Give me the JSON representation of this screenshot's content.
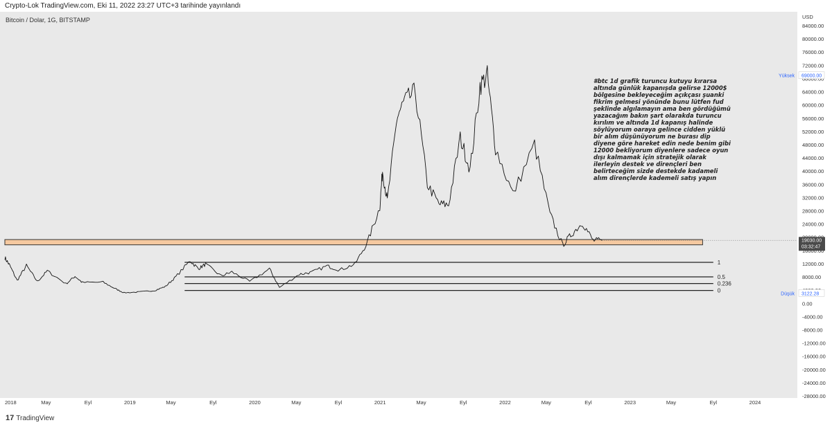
{
  "header": {
    "text": "Crypto-Lok TradingView.com, Eki 11, 2022 23:27 UTC+3 tarihinde yayınlandı"
  },
  "footer": {
    "brand": "TradingView",
    "logo_glyph": "17"
  },
  "annotation": {
    "text": "#btc 1d grafik turuncu kutuyu kırarsa altında günlük kapanışda gelirse 12000$ bölgesine bekleyeceğim açıkçası şuanki fikrim gelmesi yönünde bunu lütfen fud şeklinde algılamayın ama ben gördüğümü yazacağım bakın şart olarakda turuncu kırılım ve altında 1d kapanış halinde söylüyorum oaraya gelince cidden yüklü bir alım düşünüyorum ne burası dip diyene göre hareket edin nede benim gibi 12000 bekliyorum diyenlere sadece oyun dışı kalmamak için stratejik olarak ilerleyin destek ve dirençleri ben belirteceğim sizde destekde kadameli alım dirençlerde kademeli satış yapın"
  },
  "chart_data": {
    "type": "line",
    "title": "Bitcoin / Dolar, 1G, BITSTAMP",
    "currency_label": "USD",
    "y_range": [
      -28000,
      86000
    ],
    "y_ticks": [
      "84000.00",
      "80000.00",
      "76000.00",
      "72000.00",
      "68000.00",
      "64000.00",
      "60000.00",
      "56000.00",
      "52000.00",
      "48000.00",
      "44000.00",
      "40000.00",
      "36000.00",
      "32000.00",
      "28000.00",
      "24000.00",
      "20000.00",
      "16000.00",
      "12000.00",
      "8000.00",
      "4000.00",
      "0.00",
      "-4000.00",
      "-8000.00",
      "-12000.00",
      "-16000.00",
      "-20000.00",
      "-24000.00",
      "-28000.00"
    ],
    "x_ticks": [
      {
        "label": "2018",
        "date": "2018-01-01"
      },
      {
        "label": "May",
        "date": "2018-05-01"
      },
      {
        "label": "Eyl",
        "date": "2018-09-01"
      },
      {
        "label": "2019",
        "date": "2019-01-01"
      },
      {
        "label": "May",
        "date": "2019-05-01"
      },
      {
        "label": "Eyl",
        "date": "2019-09-01"
      },
      {
        "label": "2020",
        "date": "2020-01-01"
      },
      {
        "label": "May",
        "date": "2020-05-01"
      },
      {
        "label": "Eyl",
        "date": "2020-09-01"
      },
      {
        "label": "2021",
        "date": "2021-01-01"
      },
      {
        "label": "May",
        "date": "2021-05-01"
      },
      {
        "label": "Eyl",
        "date": "2021-09-01"
      },
      {
        "label": "2022",
        "date": "2022-01-01"
      },
      {
        "label": "May",
        "date": "2022-05-01"
      },
      {
        "label": "Eyl",
        "date": "2022-09-01"
      },
      {
        "label": "2023",
        "date": "2023-01-01"
      },
      {
        "label": "May",
        "date": "2023-05-01"
      },
      {
        "label": "Eyl",
        "date": "2023-09-01"
      },
      {
        "label": "2024",
        "date": "2024-01-01"
      }
    ],
    "series": [
      {
        "values": [
          {
            "date": "2018-01-01",
            "price": 13800
          },
          {
            "date": "2018-01-15",
            "price": 11500
          },
          {
            "date": "2018-02-06",
            "price": 6900
          },
          {
            "date": "2018-03-05",
            "price": 11400
          },
          {
            "date": "2018-04-06",
            "price": 6600
          },
          {
            "date": "2018-05-05",
            "price": 9800
          },
          {
            "date": "2018-06-29",
            "price": 5900
          },
          {
            "date": "2018-07-25",
            "price": 8200
          },
          {
            "date": "2018-08-15",
            "price": 6300
          },
          {
            "date": "2018-10-15",
            "price": 6400
          },
          {
            "date": "2018-11-20",
            "price": 4400
          },
          {
            "date": "2018-12-15",
            "price": 3200
          },
          {
            "date": "2019-01-30",
            "price": 3450
          },
          {
            "date": "2019-03-15",
            "price": 3900
          },
          {
            "date": "2019-04-15",
            "price": 5100
          },
          {
            "date": "2019-05-15",
            "price": 8000
          },
          {
            "date": "2019-06-26",
            "price": 12900
          },
          {
            "date": "2019-07-20",
            "price": 10500
          },
          {
            "date": "2019-08-10",
            "price": 11800
          },
          {
            "date": "2019-09-25",
            "price": 8300
          },
          {
            "date": "2019-10-26",
            "price": 9500
          },
          {
            "date": "2019-12-17",
            "price": 6600
          },
          {
            "date": "2020-02-13",
            "price": 10400
          },
          {
            "date": "2020-03-13",
            "price": 4800
          },
          {
            "date": "2020-05-10",
            "price": 8800
          },
          {
            "date": "2020-06-15",
            "price": 9400
          },
          {
            "date": "2020-07-30",
            "price": 11300
          },
          {
            "date": "2020-09-05",
            "price": 10100
          },
          {
            "date": "2020-10-20",
            "price": 11900
          },
          {
            "date": "2020-11-25",
            "price": 18500
          },
          {
            "date": "2020-12-31",
            "price": 29000
          },
          {
            "date": "2021-01-08",
            "price": 40000
          },
          {
            "date": "2021-01-22",
            "price": 31000
          },
          {
            "date": "2021-02-21",
            "price": 57000
          },
          {
            "date": "2021-03-13",
            "price": 61000
          },
          {
            "date": "2021-04-14",
            "price": 64000
          },
          {
            "date": "2021-05-19",
            "price": 36000
          },
          {
            "date": "2021-06-22",
            "price": 30000
          },
          {
            "date": "2021-07-20",
            "price": 29800
          },
          {
            "date": "2021-08-23",
            "price": 50000
          },
          {
            "date": "2021-09-21",
            "price": 40500
          },
          {
            "date": "2021-10-20",
            "price": 66000
          },
          {
            "date": "2021-11-10",
            "price": 68800
          },
          {
            "date": "2021-12-04",
            "price": 47000
          },
          {
            "date": "2022-01-24",
            "price": 33000
          },
          {
            "date": "2022-03-28",
            "price": 48000
          },
          {
            "date": "2022-05-12",
            "price": 27000
          },
          {
            "date": "2022-06-18",
            "price": 17600
          },
          {
            "date": "2022-07-15",
            "price": 21000
          },
          {
            "date": "2022-08-15",
            "price": 24400
          },
          {
            "date": "2022-09-15",
            "price": 19000
          },
          {
            "date": "2022-10-11",
            "price": 19030
          }
        ]
      }
    ],
    "support_box": {
      "from": "2018-01-01",
      "to": "2023-08-01",
      "low": 17700,
      "high": 19300,
      "color": "#f5c9a0",
      "border": "#333333"
    },
    "fib_levels": [
      {
        "label": "1",
        "price": 12400
      },
      {
        "label": "0.5",
        "price": 8000
      },
      {
        "label": "0.236",
        "price": 6000
      },
      {
        "label": "0",
        "price": 3900
      }
    ],
    "fib_from": "2019-06-10",
    "fib_to": "2023-09-01",
    "price_tags": {
      "high": {
        "label": "Yüksek",
        "value": "69000.00",
        "price": 69000
      },
      "low": {
        "label": "Düşük",
        "value": "3122.28",
        "price": 3122
      },
      "last": {
        "value": "19030.00",
        "countdown": "03:32:47",
        "price": 19030
      }
    },
    "grid": false,
    "legend": "none"
  }
}
